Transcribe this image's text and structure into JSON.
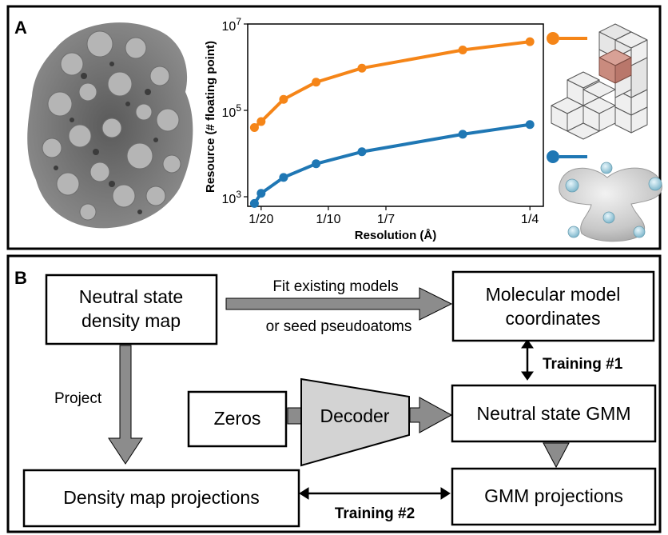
{
  "panel_a": {
    "label": "A",
    "chart_data": {
      "type": "line",
      "xlabel": "Resolution (Å)",
      "ylabel": "Resource (# floating point)",
      "x_tick_labels": [
        "1/20",
        "1/10",
        "1/7",
        "1/4"
      ],
      "x_ticks": [
        0.05,
        0.1,
        0.142857,
        0.25
      ],
      "y_tick_labels": [
        {
          "base": "10",
          "exp": "3",
          "value": 1000
        },
        {
          "base": "10",
          "exp": "5",
          "value": 100000
        },
        {
          "base": "10",
          "exp": "7",
          "value": 10000000
        }
      ],
      "xlim": [
        0.04,
        0.26
      ],
      "ylim": [
        600,
        10000000
      ],
      "y_scale": "log",
      "grid": false,
      "series": [
        {
          "color": "#f58518",
          "x": [
            0.045,
            0.05,
            0.0667,
            0.0909,
            0.125,
            0.2,
            0.25
          ],
          "y": [
            40000,
            55000,
            180000,
            450000,
            950000,
            2500000,
            3900000
          ]
        },
        {
          "color": "#1f77b4",
          "x": [
            0.045,
            0.05,
            0.0667,
            0.0909,
            0.125,
            0.2,
            0.25
          ],
          "y": [
            700,
            1200,
            2800,
            5800,
            11000,
            28000,
            47000
          ]
        }
      ]
    },
    "legend_icons": [
      {
        "name": "voxel-grid-icon",
        "color": "#f58518"
      },
      {
        "name": "gaussian-blob-icon",
        "color": "#1f77b4"
      }
    ]
  },
  "panel_b": {
    "label": "B",
    "boxes": {
      "neutral_map": [
        "Neutral state",
        "density map"
      ],
      "molecular": [
        "Molecular model",
        "coordinates"
      ],
      "zeros": "Zeros",
      "decoder": "Decoder",
      "neutral_gmm": "Neutral state GMM",
      "map_projections": "Density map projections",
      "gmm_projections": "GMM projections"
    },
    "arrow_labels": {
      "fit_line1": "Fit existing models",
      "fit_line2": "or seed pseudoatoms",
      "project": "Project",
      "training1": "Training #1",
      "training2": "Training #2"
    },
    "colors": {
      "arrow_fill": "#8c8c8c",
      "decoder_fill": "#d3d3d3"
    }
  }
}
